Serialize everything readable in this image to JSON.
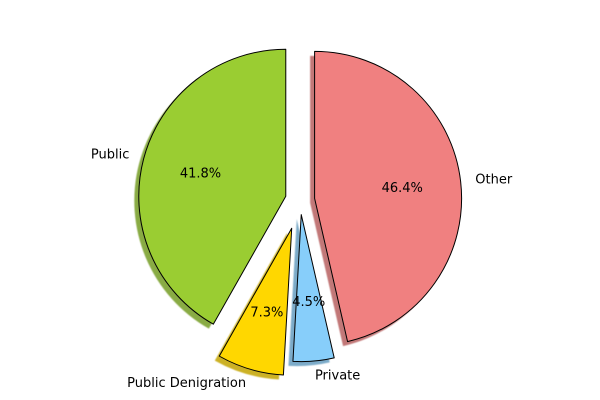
{
  "chart_data": {
    "type": "pie",
    "title": "",
    "categories": [
      "Public",
      "Public Denigration",
      "Private",
      "Other"
    ],
    "values": [
      41.8,
      7.3,
      4.5,
      46.4
    ],
    "value_labels": [
      "41.8%",
      "7.3%",
      "4.5%",
      "46.4%"
    ],
    "colors": [
      "#9acd32",
      "#ffd700",
      "#87cefa",
      "#f08080"
    ],
    "explode": [
      0.1,
      0.2,
      0.1,
      0.1
    ],
    "start_angle_deg": 90,
    "direction": "counterclockwise",
    "shadow": true,
    "legend": "none"
  }
}
